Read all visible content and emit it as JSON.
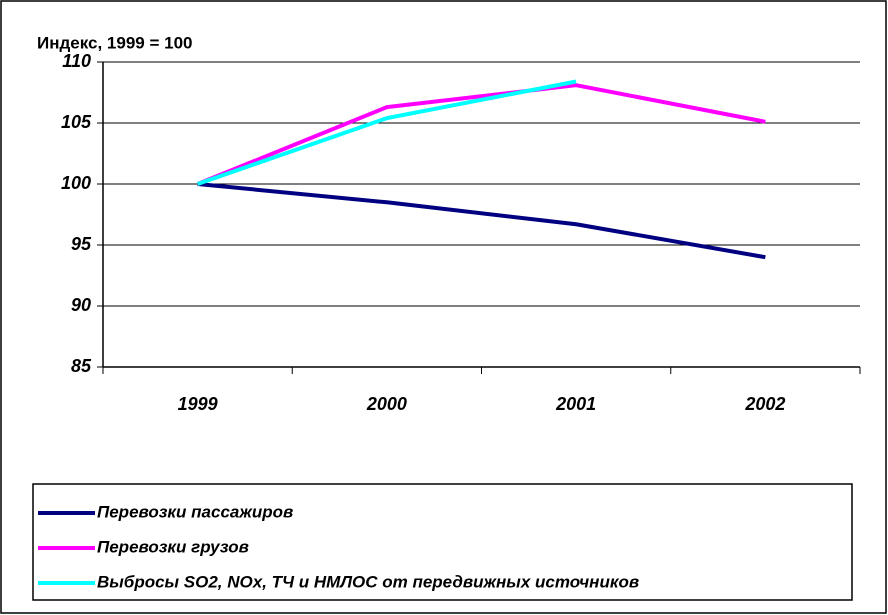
{
  "chart_data": {
    "type": "line",
    "ylabel": "Индекс, 1999 = 100",
    "categories": [
      "1999",
      "2000",
      "2001",
      "2002"
    ],
    "series": [
      {
        "name": "Перевозки пассажиров",
        "color": "#000080",
        "values": [
          100,
          98.5,
          96.7,
          94
        ]
      },
      {
        "name": "Перевозки грузов",
        "color": "#ff00ff",
        "values": [
          100,
          106.3,
          108.1,
          105.1
        ]
      },
      {
        "name": "Выбросы SO2, NOx, ТЧ и НМЛОС от передвижных источников",
        "color": "#00ffff",
        "values": [
          100,
          105.4,
          108.4,
          null
        ]
      }
    ],
    "ylim": [
      85,
      110
    ],
    "yticks": [
      85,
      90,
      95,
      100,
      105,
      110
    ],
    "grid": true,
    "legend": "bottom"
  }
}
